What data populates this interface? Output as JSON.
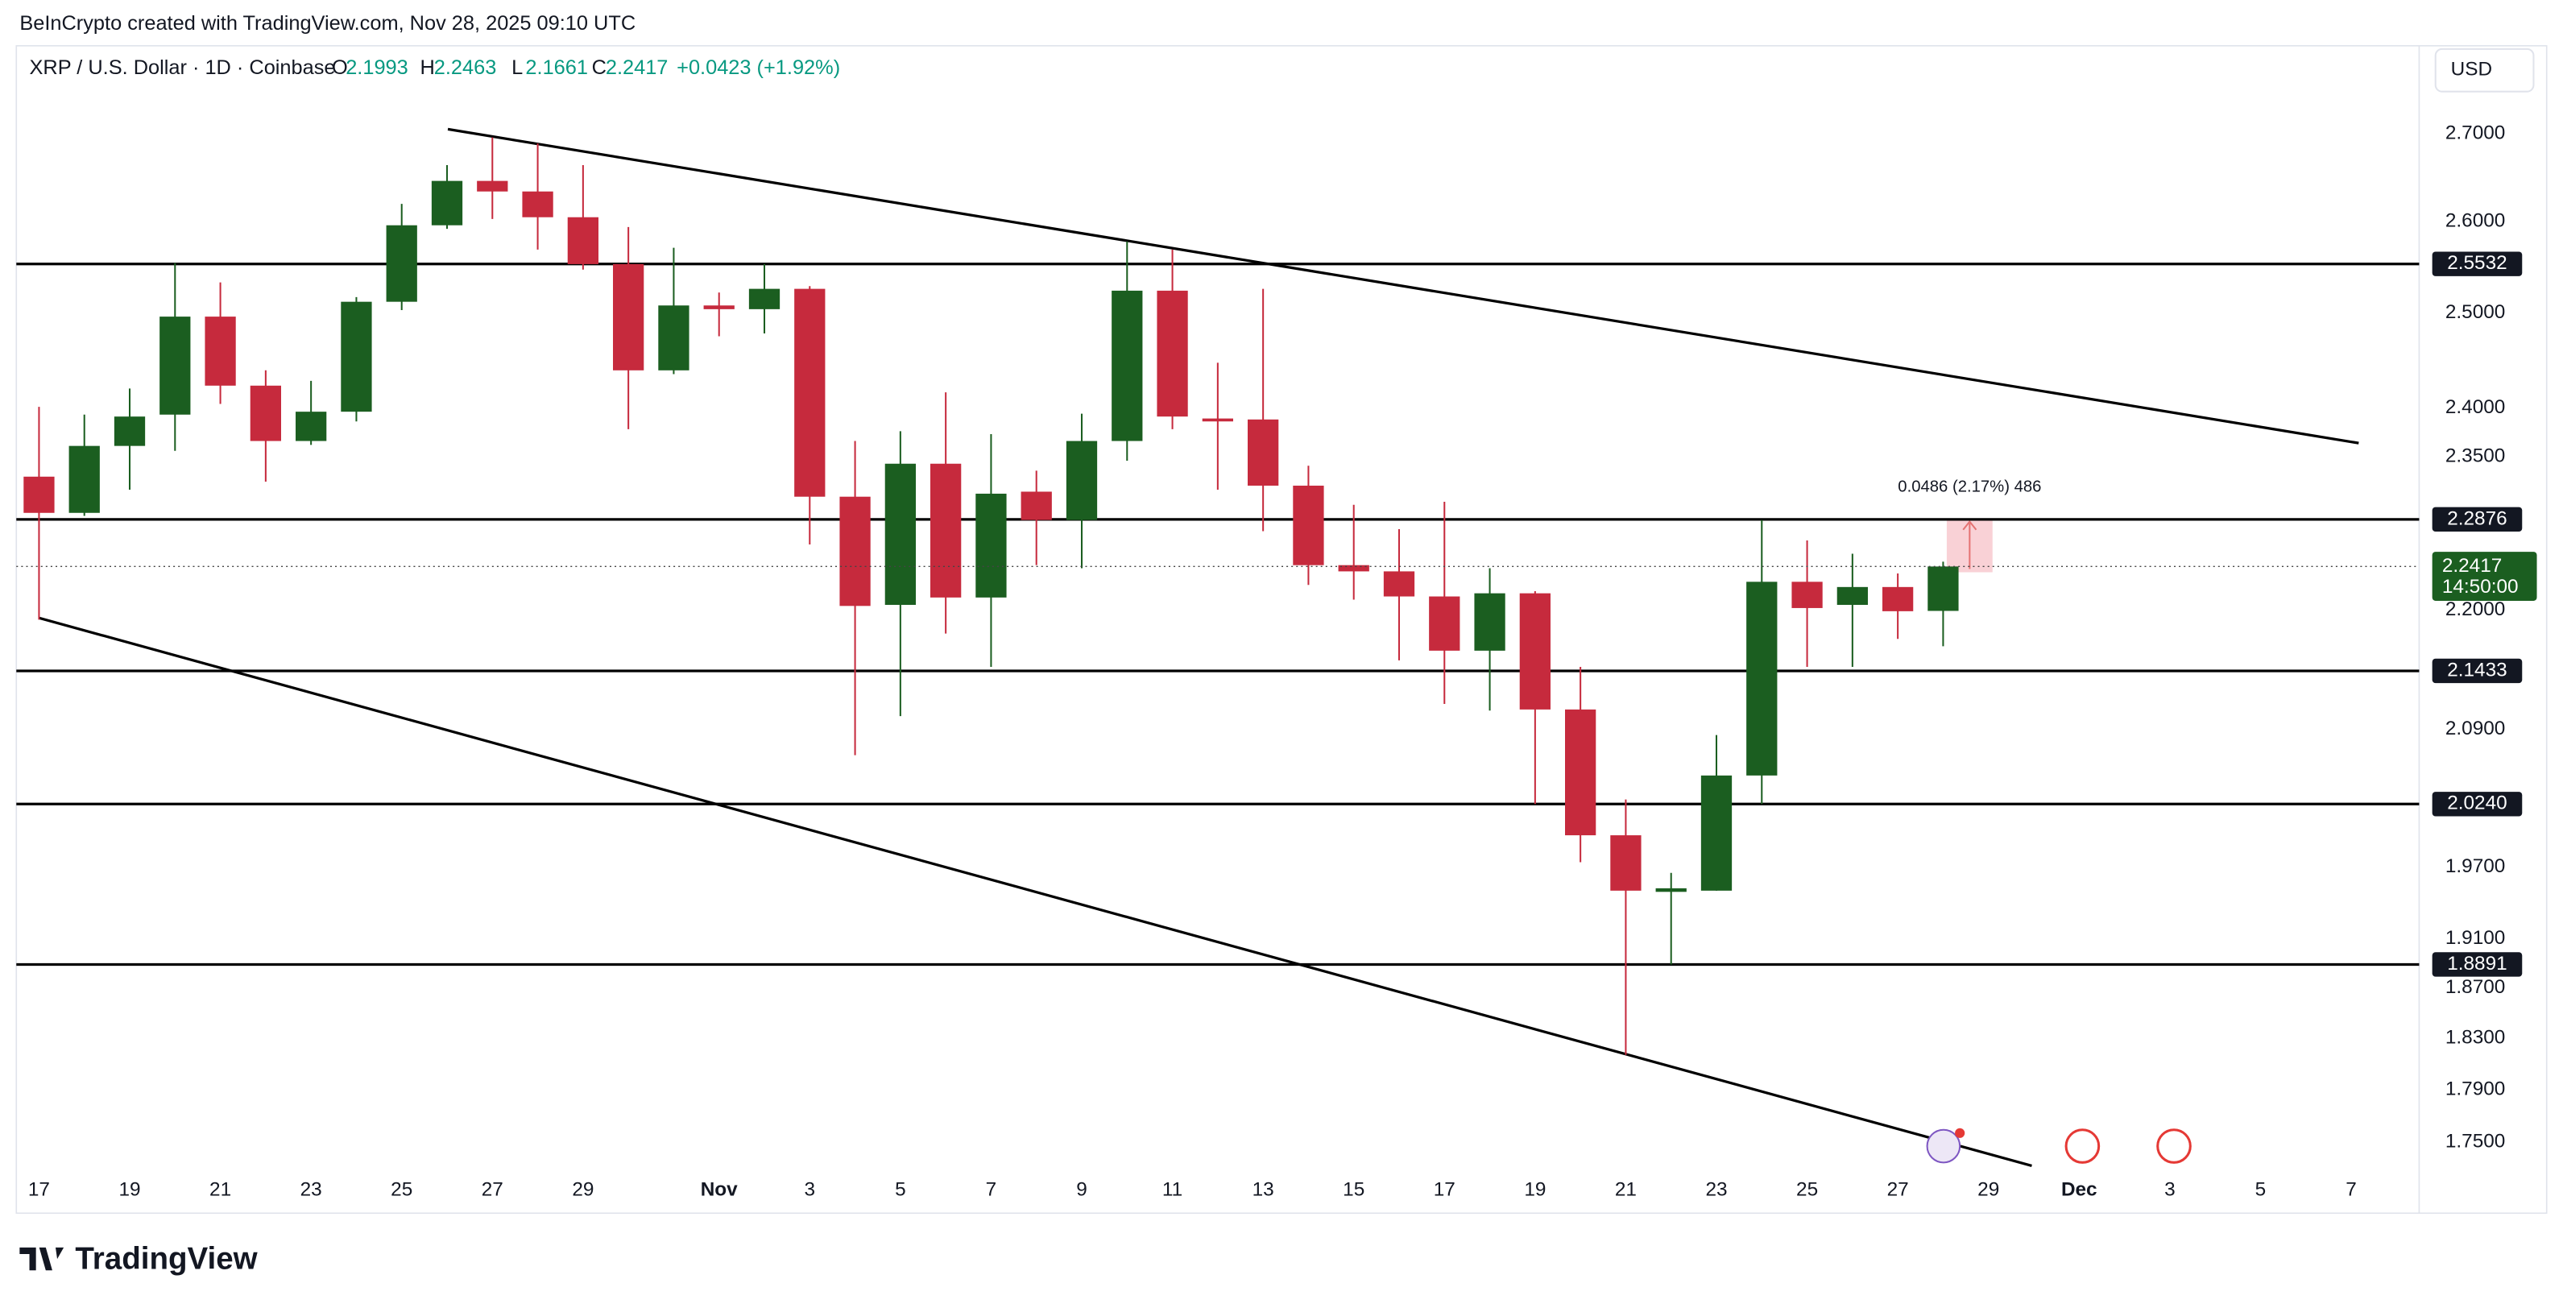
{
  "chart_data": {
    "type": "candlestick",
    "header": {
      "credit": "BeInCrypto created with TradingView.com, Nov 28, 2025 09:10 UTC",
      "symbol": "XRP / U.S. Dollar · 1D · Coinbase",
      "ohlc_labels": [
        "O",
        "H",
        "L",
        "C"
      ],
      "change": "+0.0423 (+1.92%)",
      "currency": "USD",
      "logo": "TradingView",
      "countdown": "14:50:00"
    },
    "measure_label": "0.0486 (2.17%) 486",
    "log_scale": true,
    "grid": false,
    "up_color": "#1b5e20",
    "down_color": "#c62a3d",
    "ylim": [
      1.73,
      2.74
    ],
    "yticks": [
      {
        "value": 2.7,
        "label": "2.7000"
      },
      {
        "value": 2.6,
        "label": "2.6000"
      },
      {
        "value": 2.5,
        "label": "2.5000"
      },
      {
        "value": 2.4,
        "label": "2.4000"
      },
      {
        "value": 2.35,
        "label": "2.3500"
      },
      {
        "value": 2.2,
        "label": "2.2000"
      },
      {
        "value": 2.09,
        "label": "2.0900"
      },
      {
        "value": 1.97,
        "label": "1.9700"
      },
      {
        "value": 1.91,
        "label": "1.9100"
      },
      {
        "value": 1.87,
        "label": "1.8700"
      },
      {
        "value": 1.83,
        "label": "1.8300"
      },
      {
        "value": 1.79,
        "label": "1.7900"
      },
      {
        "value": 1.75,
        "label": "1.7500"
      }
    ],
    "xlim": [
      "2025-10-16T12:00:00Z",
      "2025-12-08T12:00:00Z"
    ],
    "xticks": [
      {
        "value": "2025-10-17",
        "label": "17"
      },
      {
        "value": "2025-10-19",
        "label": "19"
      },
      {
        "value": "2025-10-21",
        "label": "21"
      },
      {
        "value": "2025-10-23",
        "label": "23"
      },
      {
        "value": "2025-10-25",
        "label": "25"
      },
      {
        "value": "2025-10-27",
        "label": "27"
      },
      {
        "value": "2025-10-29",
        "label": "29"
      },
      {
        "value": "2025-11-01",
        "label": "Nov"
      },
      {
        "value": "2025-11-03",
        "label": "3"
      },
      {
        "value": "2025-11-05",
        "label": "5"
      },
      {
        "value": "2025-11-07",
        "label": "7"
      },
      {
        "value": "2025-11-09",
        "label": "9"
      },
      {
        "value": "2025-11-11",
        "label": "11"
      },
      {
        "value": "2025-11-13",
        "label": "13"
      },
      {
        "value": "2025-11-15",
        "label": "15"
      },
      {
        "value": "2025-11-17",
        "label": "17"
      },
      {
        "value": "2025-11-19",
        "label": "19"
      },
      {
        "value": "2025-11-21",
        "label": "21"
      },
      {
        "value": "2025-11-23",
        "label": "23"
      },
      {
        "value": "2025-11-25",
        "label": "25"
      },
      {
        "value": "2025-11-27",
        "label": "27"
      },
      {
        "value": "2025-11-29",
        "label": "29"
      },
      {
        "value": "2025-12-01",
        "label": "Dec"
      },
      {
        "value": "2025-12-03",
        "label": "3"
      },
      {
        "value": "2025-12-05",
        "label": "5"
      },
      {
        "value": "2025-12-07",
        "label": "7"
      }
    ],
    "levels": [
      {
        "value": 2.5532,
        "label": "2.5532"
      },
      {
        "value": 2.2876,
        "label": "2.2876"
      },
      {
        "value": 2.1433,
        "label": "2.1433"
      },
      {
        "value": 2.024,
        "label": "2.0240"
      },
      {
        "value": 1.8891,
        "label": "1.8891"
      }
    ],
    "x": [
      "2025-10-17",
      "2025-10-18",
      "2025-10-19",
      "2025-10-20",
      "2025-10-21",
      "2025-10-22",
      "2025-10-23",
      "2025-10-24",
      "2025-10-25",
      "2025-10-26",
      "2025-10-27",
      "2025-10-28",
      "2025-10-29",
      "2025-10-30",
      "2025-10-31",
      "2025-11-01",
      "2025-11-02",
      "2025-11-03",
      "2025-11-04",
      "2025-11-05",
      "2025-11-06",
      "2025-11-07",
      "2025-11-08",
      "2025-11-09",
      "2025-11-10",
      "2025-11-11",
      "2025-11-12",
      "2025-11-13",
      "2025-11-14",
      "2025-11-15",
      "2025-11-16",
      "2025-11-17",
      "2025-11-18",
      "2025-11-19",
      "2025-11-20",
      "2025-11-21",
      "2025-11-22",
      "2025-11-23",
      "2025-11-24",
      "2025-11-25",
      "2025-11-26",
      "2025-11-27",
      "2025-11-28"
    ],
    "ohlc": [
      [
        2.33,
        2.401,
        2.191,
        2.294
      ],
      [
        2.294,
        2.393,
        2.291,
        2.361
      ],
      [
        2.361,
        2.42,
        2.317,
        2.391
      ],
      [
        2.393,
        2.554,
        2.356,
        2.496
      ],
      [
        2.496,
        2.533,
        2.404,
        2.423
      ],
      [
        2.423,
        2.439,
        2.325,
        2.366
      ],
      [
        2.366,
        2.428,
        2.362,
        2.396
      ],
      [
        2.396,
        2.517,
        2.386,
        2.512
      ],
      [
        2.512,
        2.62,
        2.503,
        2.596
      ],
      [
        2.596,
        2.664,
        2.592,
        2.646
      ],
      [
        2.646,
        2.696,
        2.603,
        2.634
      ],
      [
        2.634,
        2.689,
        2.569,
        2.605
      ],
      [
        2.605,
        2.664,
        2.547,
        2.553
      ],
      [
        2.553,
        2.594,
        2.378,
        2.439
      ],
      [
        2.439,
        2.571,
        2.435,
        2.508
      ],
      [
        2.508,
        2.522,
        2.475,
        2.504
      ],
      [
        2.504,
        2.553,
        2.478,
        2.526
      ],
      [
        2.526,
        2.529,
        2.263,
        2.31
      ],
      [
        2.31,
        2.366,
        2.067,
        2.204
      ],
      [
        2.205,
        2.376,
        2.102,
        2.343
      ],
      [
        2.343,
        2.416,
        2.178,
        2.212
      ],
      [
        2.212,
        2.373,
        2.147,
        2.313
      ],
      [
        2.315,
        2.336,
        2.243,
        2.287
      ],
      [
        2.287,
        2.394,
        2.24,
        2.366
      ],
      [
        2.366,
        2.578,
        2.346,
        2.524
      ],
      [
        2.524,
        2.569,
        2.378,
        2.391
      ],
      [
        2.389,
        2.447,
        2.317,
        2.386
      ],
      [
        2.388,
        2.526,
        2.276,
        2.321
      ],
      [
        2.321,
        2.341,
        2.224,
        2.243
      ],
      [
        2.243,
        2.302,
        2.21,
        2.237
      ],
      [
        2.237,
        2.278,
        2.153,
        2.213
      ],
      [
        2.213,
        2.305,
        2.113,
        2.162
      ],
      [
        2.162,
        2.24,
        2.107,
        2.216
      ],
      [
        2.216,
        2.218,
        2.024,
        2.108
      ],
      [
        2.108,
        2.147,
        1.974,
        1.997
      ],
      [
        1.997,
        2.028,
        1.817,
        1.95
      ],
      [
        1.949,
        1.965,
        1.889,
        1.952
      ],
      [
        1.95,
        2.085,
        1.95,
        2.049
      ],
      [
        2.049,
        2.287,
        2.024,
        2.227
      ],
      [
        2.227,
        2.267,
        2.147,
        2.202
      ],
      [
        2.205,
        2.254,
        2.147,
        2.222
      ],
      [
        2.222,
        2.235,
        2.173,
        2.199
      ],
      [
        2.1993,
        2.2463,
        2.1661,
        2.2417
      ]
    ]
  }
}
